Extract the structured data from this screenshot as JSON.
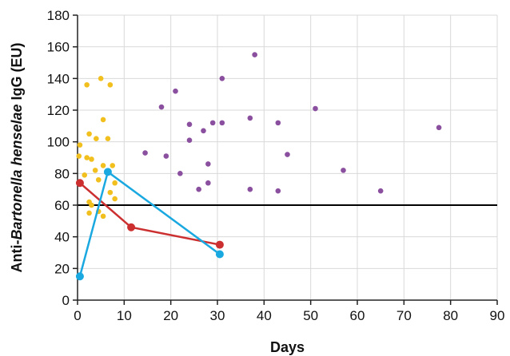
{
  "chart_data": {
    "type": "scatter",
    "xlabel": "Days",
    "ylabel_parts": [
      {
        "text": "Anti-",
        "italic": false
      },
      {
        "text": "Bartonella henselae",
        "italic": true
      },
      {
        "text": " IgG (EU)",
        "italic": false
      }
    ],
    "xlim": [
      0,
      90
    ],
    "ylim": [
      0,
      180
    ],
    "xticks": [
      0,
      10,
      20,
      30,
      40,
      50,
      60,
      70,
      80,
      90
    ],
    "yticks": [
      0,
      20,
      40,
      60,
      80,
      100,
      120,
      140,
      160,
      180
    ],
    "grid": true,
    "reference_line": {
      "y": 60,
      "color": "#000000"
    },
    "series": [
      {
        "kind": "points",
        "color": "#f2c01e",
        "points": [
          [
            0.5,
            98
          ],
          [
            0.3,
            91
          ],
          [
            1.5,
            79
          ],
          [
            2,
            90
          ],
          [
            3,
            89
          ],
          [
            2.5,
            105
          ],
          [
            4,
            102
          ],
          [
            3.8,
            82
          ],
          [
            5.5,
            85
          ],
          [
            6.5,
            102
          ],
          [
            7.5,
            85
          ],
          [
            8,
            74
          ],
          [
            8,
            64
          ],
          [
            7,
            68
          ],
          [
            5.5,
            114
          ],
          [
            5,
            140
          ],
          [
            7,
            136
          ],
          [
            2,
            136
          ],
          [
            2.5,
            62
          ],
          [
            2.5,
            55
          ],
          [
            4.5,
            56
          ],
          [
            5.5,
            53
          ],
          [
            4.5,
            76
          ],
          [
            3,
            60
          ]
        ]
      },
      {
        "kind": "points",
        "color": "#8a4f9e",
        "points": [
          [
            14.5,
            93
          ],
          [
            18,
            122
          ],
          [
            19,
            91
          ],
          [
            21,
            132
          ],
          [
            22,
            80
          ],
          [
            24,
            111
          ],
          [
            24,
            101
          ],
          [
            26,
            70
          ],
          [
            27,
            107
          ],
          [
            28,
            86
          ],
          [
            28,
            74
          ],
          [
            29,
            112
          ],
          [
            31,
            112
          ],
          [
            31,
            140
          ],
          [
            37,
            115
          ],
          [
            37,
            70
          ],
          [
            38,
            155
          ],
          [
            43,
            112
          ],
          [
            43,
            69
          ],
          [
            45,
            92
          ],
          [
            51,
            121
          ],
          [
            57,
            82
          ],
          [
            65,
            69
          ],
          [
            77.5,
            109
          ]
        ]
      },
      {
        "kind": "line",
        "color": "#cc2f2f",
        "points": [
          [
            0.5,
            74
          ],
          [
            11.5,
            46
          ],
          [
            30.5,
            35
          ]
        ]
      },
      {
        "kind": "line",
        "color": "#1aa8e0",
        "points": [
          [
            0.5,
            15
          ],
          [
            6.5,
            81
          ],
          [
            30.5,
            29
          ]
        ]
      }
    ]
  }
}
